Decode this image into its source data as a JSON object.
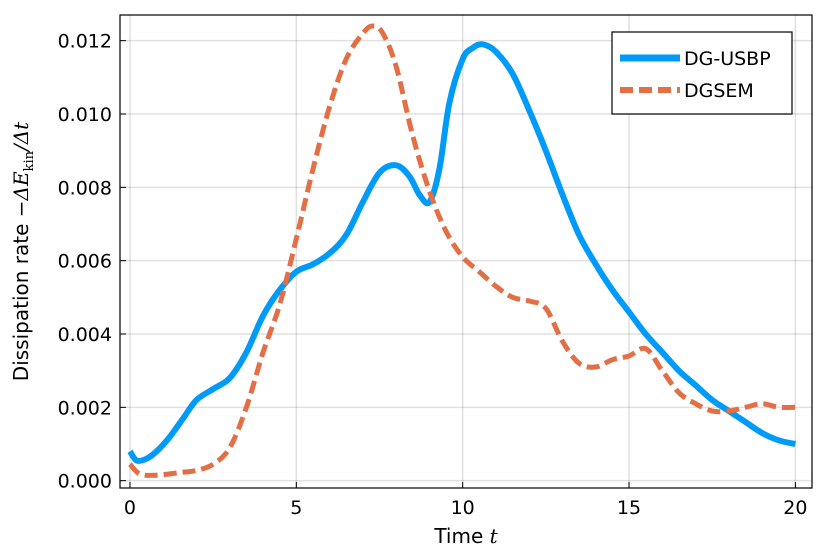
{
  "chart_data": {
    "type": "line",
    "xlabel": "Time",
    "xlabel_var": "t",
    "ylabel_prefix": "Dissipation rate",
    "ylabel_math": "−ΔE",
    "ylabel_sub": "kin",
    "ylabel_tail": "/Δt",
    "xlim": [
      -0.3,
      20.5
    ],
    "ylim": [
      -0.0002,
      0.0127
    ],
    "xticks": [
      0,
      5,
      10,
      15,
      20
    ],
    "xtick_labels": [
      "0",
      "5",
      "10",
      "15",
      "20"
    ],
    "yticks": [
      0.0,
      0.002,
      0.004,
      0.006,
      0.008,
      0.01,
      0.012
    ],
    "ytick_labels": [
      "0.000",
      "0.002",
      "0.004",
      "0.006",
      "0.008",
      "0.010",
      "0.012"
    ],
    "grid": true,
    "legend_position": "top-right",
    "series": [
      {
        "name": "DG-USBP",
        "color": "#009af9",
        "style": "solid",
        "x": [
          0,
          0.2,
          0.5,
          0.8,
          1.2,
          1.6,
          2.0,
          2.5,
          3.0,
          3.5,
          4.0,
          4.5,
          5.0,
          5.5,
          6.0,
          6.5,
          7.0,
          7.5,
          8.0,
          8.4,
          8.7,
          9.0,
          9.3,
          9.6,
          10.0,
          10.3,
          10.6,
          11.0,
          11.5,
          12.0,
          12.5,
          13.0,
          13.5,
          14.0,
          14.5,
          15.0,
          15.5,
          16.0,
          16.5,
          17.0,
          17.5,
          18.0,
          18.5,
          19.0,
          19.5,
          20.0
        ],
        "y": [
          0.0008,
          0.00055,
          0.0006,
          0.0008,
          0.0012,
          0.0017,
          0.0022,
          0.0025,
          0.0028,
          0.0035,
          0.0045,
          0.0052,
          0.0057,
          0.0059,
          0.0062,
          0.0067,
          0.0076,
          0.0084,
          0.0086,
          0.0083,
          0.0078,
          0.0076,
          0.0085,
          0.0103,
          0.0115,
          0.0118,
          0.0119,
          0.0117,
          0.0111,
          0.0101,
          0.009,
          0.0078,
          0.0067,
          0.0059,
          0.0052,
          0.0046,
          0.004,
          0.0035,
          0.003,
          0.0026,
          0.0022,
          0.0019,
          0.0016,
          0.0013,
          0.0011,
          0.001
        ]
      },
      {
        "name": "DGSEM",
        "color": "#e26f46",
        "style": "dashed",
        "x": [
          0,
          0.3,
          0.8,
          1.5,
          2.0,
          2.5,
          3.0,
          3.5,
          4.0,
          4.5,
          5.0,
          5.5,
          6.0,
          6.5,
          7.0,
          7.3,
          7.6,
          8.0,
          8.5,
          9.0,
          9.5,
          10.0,
          10.5,
          11.0,
          11.5,
          12.0,
          12.5,
          13.0,
          13.5,
          14.0,
          14.5,
          15.0,
          15.5,
          16.0,
          16.5,
          17.0,
          17.5,
          18.0,
          18.5,
          19.0,
          19.5,
          20.0
        ],
        "y": [
          0.00045,
          0.00018,
          0.00015,
          0.00022,
          0.00028,
          0.00045,
          0.0009,
          0.002,
          0.0035,
          0.0048,
          0.0066,
          0.0085,
          0.0102,
          0.0115,
          0.0122,
          0.0124,
          0.0122,
          0.0113,
          0.0094,
          0.0079,
          0.0068,
          0.0061,
          0.0057,
          0.0053,
          0.005,
          0.0049,
          0.0047,
          0.0038,
          0.0032,
          0.0031,
          0.0033,
          0.0034,
          0.0036,
          0.003,
          0.0024,
          0.0021,
          0.0019,
          0.0019,
          0.002,
          0.0021,
          0.002,
          0.002
        ]
      }
    ]
  }
}
